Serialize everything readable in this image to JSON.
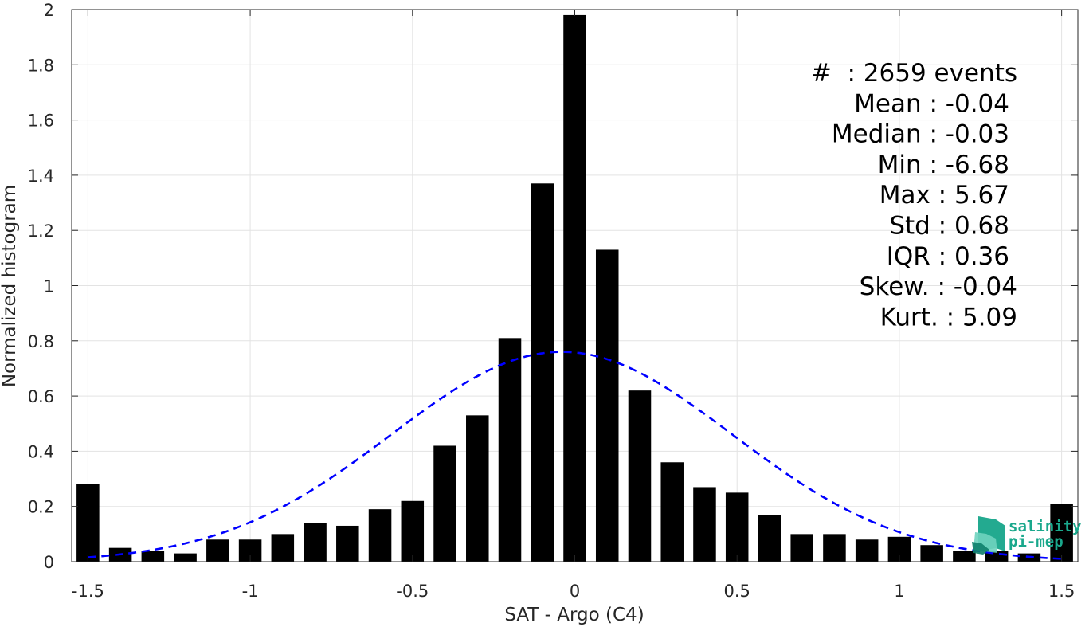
{
  "chart_data": {
    "type": "bar",
    "title": "",
    "xlabel": "SAT - Argo (C4)",
    "ylabel": "Normalized histogram",
    "xlim": [
      -1.55,
      1.55
    ],
    "ylim": [
      0,
      2
    ],
    "grid": true,
    "xticks": [
      -1.5,
      -1,
      -0.5,
      0,
      0.5,
      1,
      1.5
    ],
    "xtick_labels": [
      "-1.5",
      "-1",
      "-0.5",
      "0",
      "0.5",
      "1",
      "1.5"
    ],
    "yticks": [
      0,
      0.2,
      0.4,
      0.6,
      0.8,
      1,
      1.2,
      1.4,
      1.6,
      1.8,
      2
    ],
    "ytick_labels": [
      "0",
      "0.2",
      "0.4",
      "0.6",
      "0.8",
      "1",
      "1.2",
      "1.4",
      "1.6",
      "1.8",
      "2"
    ],
    "bins": {
      "centers": [
        -1.5,
        -1.4,
        -1.3,
        -1.2,
        -1.1,
        -1.0,
        -0.9,
        -0.8,
        -0.7,
        -0.6,
        -0.5,
        -0.4,
        -0.3,
        -0.2,
        -0.1,
        0.0,
        0.1,
        0.2,
        0.3,
        0.4,
        0.5,
        0.6,
        0.7,
        0.8,
        0.9,
        1.0,
        1.1,
        1.2,
        1.3,
        1.4,
        1.5
      ],
      "width": 0.07,
      "values": [
        0.28,
        0.05,
        0.04,
        0.03,
        0.08,
        0.08,
        0.1,
        0.14,
        0.13,
        0.19,
        0.22,
        0.42,
        0.53,
        0.81,
        1.37,
        1.98,
        1.13,
        0.62,
        0.36,
        0.27,
        0.25,
        0.17,
        0.1,
        0.1,
        0.08,
        0.09,
        0.06,
        0.04,
        0.04,
        0.03,
        0.21
      ]
    },
    "fit": {
      "type": "normal",
      "mean": -0.04,
      "std": 0.525,
      "peak": 0.76,
      "x_range": [
        -1.5,
        1.5
      ],
      "color": "#0000ff",
      "style": "dashed"
    },
    "bar_color": "#000000",
    "annotations": [
      "#  : 2659 events",
      "Mean : -0.04",
      "Median : -0.03",
      "Min : -6.68",
      "Max : 5.67",
      "Std : 0.68",
      "IQR : 0.36",
      "Skew. : -0.04",
      "Kurt. : 5.09"
    ]
  },
  "logo": {
    "line1": "salinity",
    "line2": "pi-mep",
    "color": "#1aa88c",
    "icon": "salinity-logo-icon"
  }
}
